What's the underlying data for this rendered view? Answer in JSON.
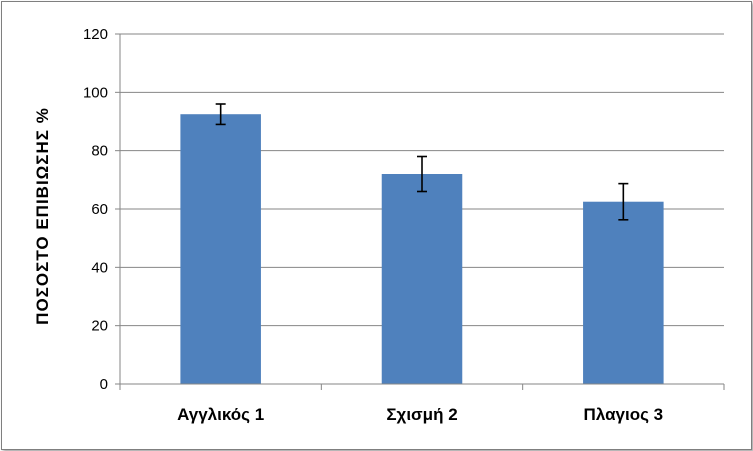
{
  "chart_data": {
    "type": "bar",
    "categories": [
      "Αγγλικός 1",
      "Σχισμή 2",
      "Πλαγιος 3"
    ],
    "values": [
      92.5,
      72,
      62.5
    ],
    "error_bars": [
      3.5,
      6,
      6.2
    ],
    "ylabel": "ΠΟΣΟΣΤΟ  ΕΠΙΒΙΩΣΗΣ     %",
    "ylim": [
      0,
      120
    ],
    "yticks": [
      0,
      20,
      40,
      60,
      80,
      100,
      120
    ],
    "ytick_labels": [
      "0",
      "20",
      "40",
      "60",
      "80",
      "100",
      "120"
    ],
    "grid": true,
    "legend": "none",
    "bar_color": "#4f81bd",
    "grid_color": "#868686"
  }
}
